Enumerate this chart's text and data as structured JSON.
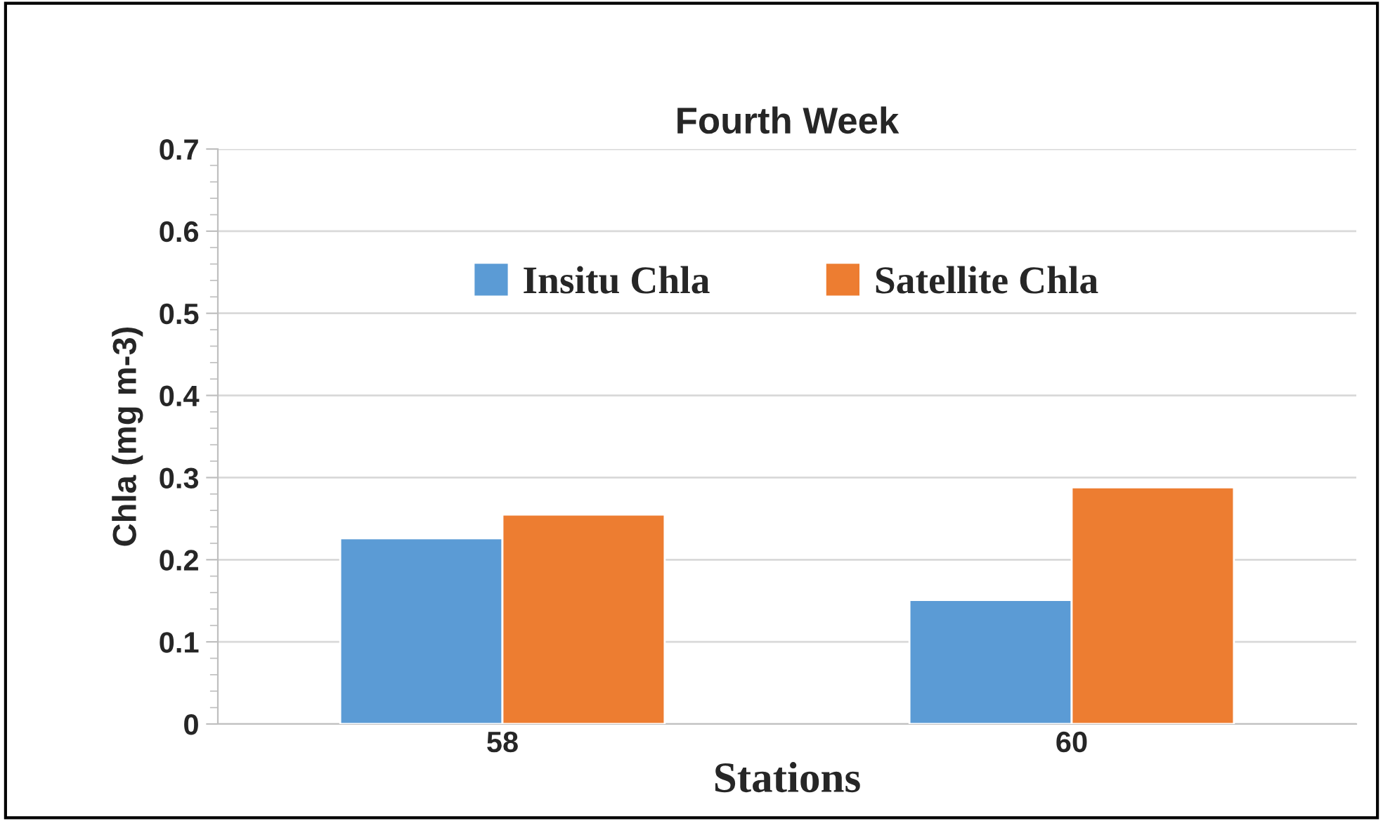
{
  "chart_data": {
    "type": "bar",
    "title": "Fourth Week",
    "xlabel": "Stations",
    "ylabel": "Chla (mg m-3)",
    "categories": [
      "58",
      "60"
    ],
    "series": [
      {
        "name": "Insitu Chla",
        "color": "#5b9bd5",
        "values": [
          0.226,
          0.151
        ]
      },
      {
        "name": "Satellite Chla",
        "color": "#ed7d31",
        "values": [
          0.255,
          0.288
        ]
      }
    ],
    "ylim": [
      0,
      0.7
    ],
    "yticks": [
      {
        "value": 0,
        "label": "0"
      },
      0.1,
      0.2,
      0.3,
      0.4,
      0.5,
      0.6,
      0.7
    ],
    "grid": "y",
    "legend": "top"
  }
}
